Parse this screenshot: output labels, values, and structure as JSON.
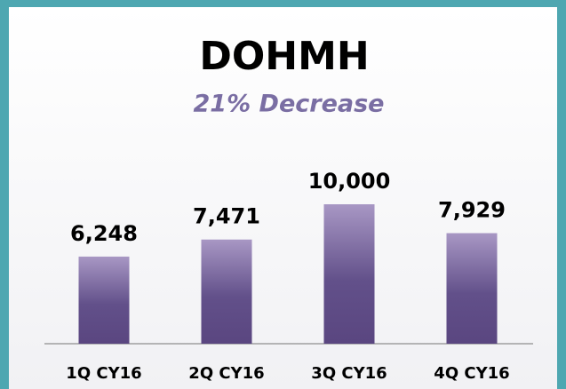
{
  "chart_data": {
    "type": "bar",
    "title": "DOHMH",
    "subtitle": "21% Decrease",
    "categories": [
      "1Q CY16",
      "2Q CY16",
      "3Q CY16",
      "4Q CY16"
    ],
    "values": [
      6248,
      7471,
      10000,
      7929
    ],
    "value_labels": [
      "6,248",
      "7,471",
      "10,000",
      "7,929"
    ],
    "color": "#6a5590"
  }
}
